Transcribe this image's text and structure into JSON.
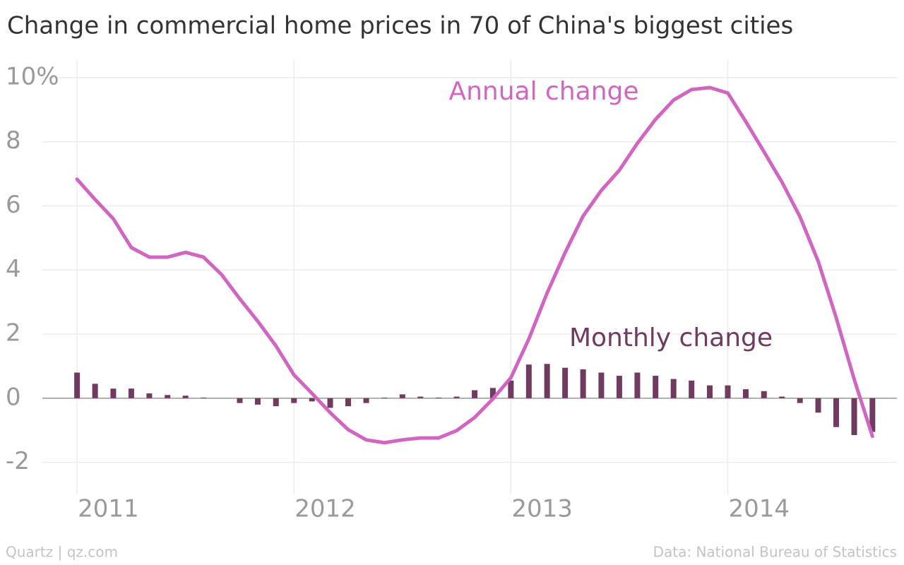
{
  "chart_data": {
    "type": "combo",
    "title": "Change in commercial home prices in 70 of China's biggest cities",
    "source": "Data: National Bureau of Statistics",
    "credit": "Quartz | qz.com",
    "x": [
      2011,
      2011.083,
      2011.167,
      2011.25,
      2011.333,
      2011.417,
      2011.5,
      2011.583,
      2011.667,
      2011.75,
      2011.833,
      2011.917,
      2012,
      2012.083,
      2012.167,
      2012.25,
      2012.333,
      2012.417,
      2012.5,
      2012.583,
      2012.667,
      2012.75,
      2012.833,
      2012.917,
      2013,
      2013.083,
      2013.167,
      2013.25,
      2013.333,
      2013.417,
      2013.5,
      2013.583,
      2013.667,
      2013.75,
      2013.833,
      2013.917,
      2014,
      2014.083,
      2014.167,
      2014.25,
      2014.333,
      2014.417,
      2014.5,
      2014.583,
      2014.667
    ],
    "series": [
      {
        "name": "Monthly change",
        "type": "bar",
        "color": "#713a5f",
        "values": [
          0.8,
          0.45,
          0.3,
          0.3,
          0.15,
          0.1,
          0.08,
          0.02,
          0,
          -0.15,
          -0.2,
          -0.25,
          -0.15,
          -0.1,
          -0.3,
          -0.25,
          -0.15,
          0.02,
          0.12,
          0.05,
          0.02,
          0.05,
          0.25,
          0.32,
          0.55,
          1.05,
          1.07,
          0.95,
          0.9,
          0.8,
          0.7,
          0.8,
          0.7,
          0.6,
          0.55,
          0.4,
          0.4,
          0.28,
          0.22,
          0.05,
          -0.15,
          -0.45,
          -0.9,
          -1.15,
          -1.05
        ]
      },
      {
        "name": "Annual change",
        "type": "line",
        "color": "#d166c0",
        "values": [
          6.83,
          6.2,
          5.6,
          4.7,
          4.4,
          4.4,
          4.55,
          4.4,
          3.85,
          3.1,
          2.4,
          1.63,
          0.73,
          0.15,
          -0.45,
          -0.98,
          -1.3,
          -1.39,
          -1.3,
          -1.24,
          -1.24,
          -1.01,
          -0.6,
          -0.02,
          0.64,
          1.85,
          3.28,
          4.54,
          5.68,
          6.48,
          7.11,
          7.95,
          8.7,
          9.3,
          9.63,
          9.69,
          9.52,
          8.63,
          7.69,
          6.74,
          5.66,
          4.27,
          2.51,
          0.59,
          -1.19
        ]
      }
    ],
    "xlim": [
      2010.84,
      2014.78
    ],
    "xticks": [
      2011,
      2012,
      2013,
      2014
    ],
    "ylim": [
      -3,
      10.55
    ],
    "yticks": [
      {
        "value": 10,
        "label": "10%"
      },
      8,
      6,
      4,
      2,
      0,
      -2
    ],
    "grid": true
  }
}
